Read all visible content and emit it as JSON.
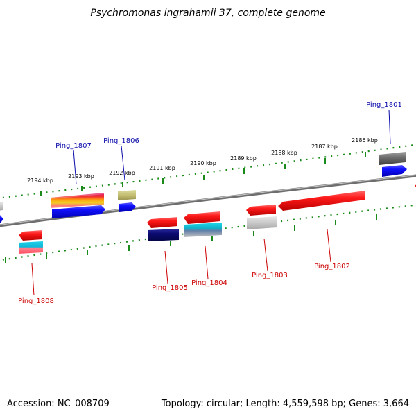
{
  "title": "Psychromonas ingrahamii 37, complete genome",
  "footer": {
    "accession": "Accession: NC_008709",
    "summary": "Topology: circular; Length: 4,559,598 bp; Genes: 3,664"
  },
  "ticks": [
    {
      "label": "2194 kbp"
    },
    {
      "label": "2193 kbp"
    },
    {
      "label": "2192 kbp"
    },
    {
      "label": "2191 kbp"
    },
    {
      "label": "2190 kbp"
    },
    {
      "label": "2189 kbp"
    },
    {
      "label": "2188 kbp"
    },
    {
      "label": "2187 kbp"
    },
    {
      "label": "2186 kbp"
    }
  ],
  "genes": [
    {
      "label": "Ping_1801",
      "strand": "forward",
      "color": "#00008b"
    },
    {
      "label": "Ping_1806",
      "strand": "forward",
      "color": "#00008b"
    },
    {
      "label": "Ping_1807",
      "strand": "forward",
      "color": "#00008b"
    },
    {
      "label": "Ping_1802",
      "strand": "reverse",
      "color": "#cc0000"
    },
    {
      "label": "Ping_1803",
      "strand": "reverse",
      "color": "#cc0000"
    },
    {
      "label": "Ping_1804",
      "strand": "reverse",
      "color": "#cc0000"
    },
    {
      "label": "Ping_1805",
      "strand": "reverse",
      "color": "#cc0000"
    },
    {
      "label": "Ping_1808",
      "strand": "reverse",
      "color": "#cc0000"
    }
  ]
}
